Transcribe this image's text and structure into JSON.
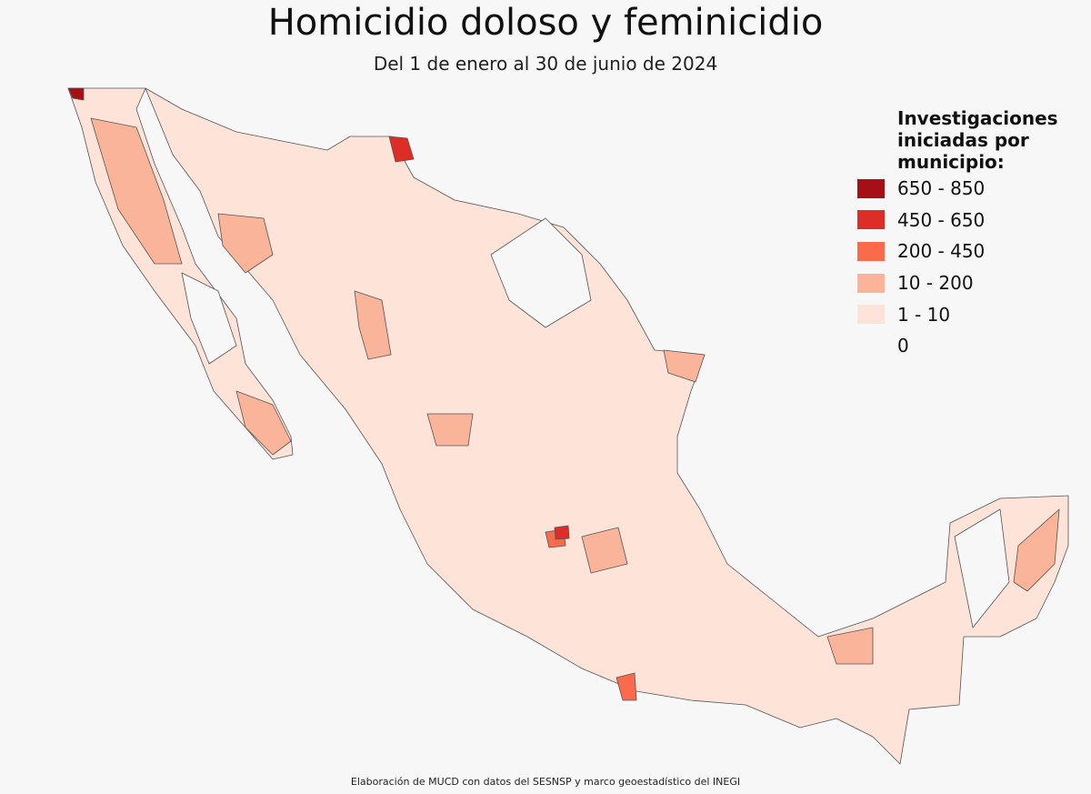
{
  "header": {
    "title": "Homicidio doloso y feminicidio",
    "subtitle": "Del 1 de enero al 30 de junio de 2024"
  },
  "legend": {
    "title": "Investigaciones iniciadas por municipio:",
    "items": [
      {
        "label": "650 - 850",
        "color": "#a50f15"
      },
      {
        "label": "450 - 650",
        "color": "#de2d26"
      },
      {
        "label": "200 - 450",
        "color": "#fb6a4a"
      },
      {
        "label": "10 - 200",
        "color": "#f9b49a"
      },
      {
        "label": "1 - 10",
        "color": "#fde3d8"
      },
      {
        "label": "0",
        "color": "#f7f7f7"
      }
    ]
  },
  "footer": {
    "credit": "Elaboración de MUCD con datos del SESNSP y marco geoestadístico del INEGI"
  }
}
